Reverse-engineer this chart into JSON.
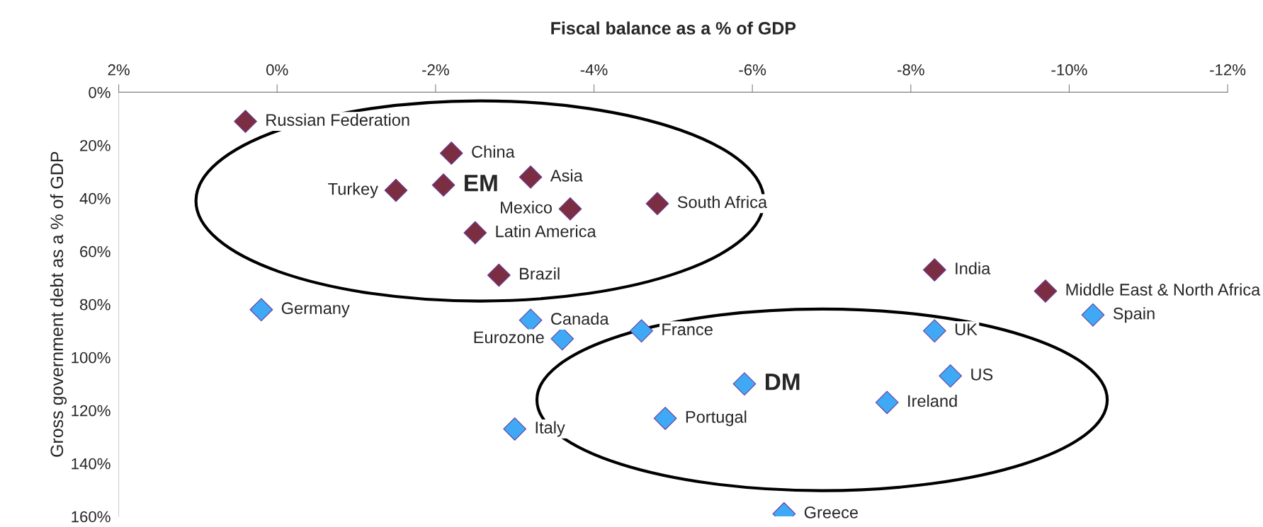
{
  "chart_data": {
    "type": "scatter",
    "title": "Fiscal balance as a % of GDP",
    "ylabel": "Gross government debt as a % of GDP",
    "series": [
      {
        "color": "#7b2e42",
        "x": [
          0.4,
          -2.2,
          -3.2,
          -1.5,
          -3.7,
          -4.8,
          -2.5,
          -2.8,
          -8.3,
          -9.7
        ],
        "values": [
          11,
          23,
          32,
          37,
          44,
          42,
          53,
          69,
          67,
          75
        ]
      },
      {
        "name": "EM",
        "color": "#7b2e42",
        "x": [
          -2.1
        ],
        "values": [
          35
        ]
      },
      {
        "color": "#3fa9f5",
        "x": [
          0.2,
          -3.2,
          -3.6,
          -4.6,
          -10.3,
          -8.3,
          -8.5,
          -7.7,
          -4.9,
          -3.0,
          -6.4
        ],
        "values": [
          82,
          86,
          93,
          90,
          84,
          90,
          107,
          117,
          123,
          127,
          159
        ]
      },
      {
        "name": "DM",
        "color": "#3fa9f5",
        "x": [
          -5.9
        ],
        "values": [
          110
        ]
      }
    ],
    "annotations": [
      {
        "text": "Russian Federation",
        "x": 0.4,
        "y": 11
      },
      {
        "text": "China",
        "x": -2.2,
        "y": 23
      },
      {
        "text": "Asia",
        "x": -3.2,
        "y": 32
      },
      {
        "text": "Turkey",
        "x": -1.5,
        "y": 37
      },
      {
        "text": "Mexico",
        "x": -3.7,
        "y": 44
      },
      {
        "text": "South Africa",
        "x": -4.8,
        "y": 42
      },
      {
        "text": "Latin America",
        "x": -2.5,
        "y": 53
      },
      {
        "text": "Brazil",
        "x": -2.8,
        "y": 69
      },
      {
        "text": "India",
        "x": -8.3,
        "y": 67
      },
      {
        "text": "Middle East & North Africa",
        "x": -9.7,
        "y": 75
      },
      {
        "text": "Germany",
        "x": 0.2,
        "y": 82
      },
      {
        "text": "Canada",
        "x": -3.2,
        "y": 86
      },
      {
        "text": "Eurozone",
        "x": -3.6,
        "y": 93
      },
      {
        "text": "France",
        "x": -4.6,
        "y": 90
      },
      {
        "text": "Spain",
        "x": -10.3,
        "y": 84
      },
      {
        "text": "UK",
        "x": -8.3,
        "y": 90
      },
      {
        "text": "US",
        "x": -8.5,
        "y": 107
      },
      {
        "text": "Ireland",
        "x": -7.7,
        "y": 117
      },
      {
        "text": "Portugal",
        "x": -4.9,
        "y": 123
      },
      {
        "text": "Italy",
        "x": -3.0,
        "y": 127
      },
      {
        "text": "Greece",
        "x": -6.4,
        "y": 159
      }
    ],
    "xlim": [
      2,
      -12
    ],
    "ylim": [
      160,
      0
    ],
    "xticks": [
      {
        "value": 2,
        "label": "2%"
      },
      {
        "value": 0,
        "label": "0%"
      },
      {
        "value": -2,
        "label": "-2%"
      },
      {
        "value": -4,
        "label": "-4%"
      },
      {
        "value": -6,
        "label": "-6%"
      },
      {
        "value": -8,
        "label": "-8%"
      },
      {
        "value": -10,
        "label": "-10%"
      },
      {
        "value": -12,
        "label": "-12%"
      }
    ],
    "yticks": [
      {
        "value": 0,
        "label": "0%"
      },
      {
        "value": 20,
        "label": "20%"
      },
      {
        "value": 40,
        "label": "40%"
      },
      {
        "value": 60,
        "label": "60%"
      },
      {
        "value": 80,
        "label": "80%"
      },
      {
        "value": 100,
        "label": "100%"
      },
      {
        "value": 120,
        "label": "120%"
      },
      {
        "value": 140,
        "label": "140%"
      },
      {
        "value": 160,
        "label": "160%"
      }
    ],
    "marker": "diamond",
    "grid": false,
    "legend": false
  }
}
